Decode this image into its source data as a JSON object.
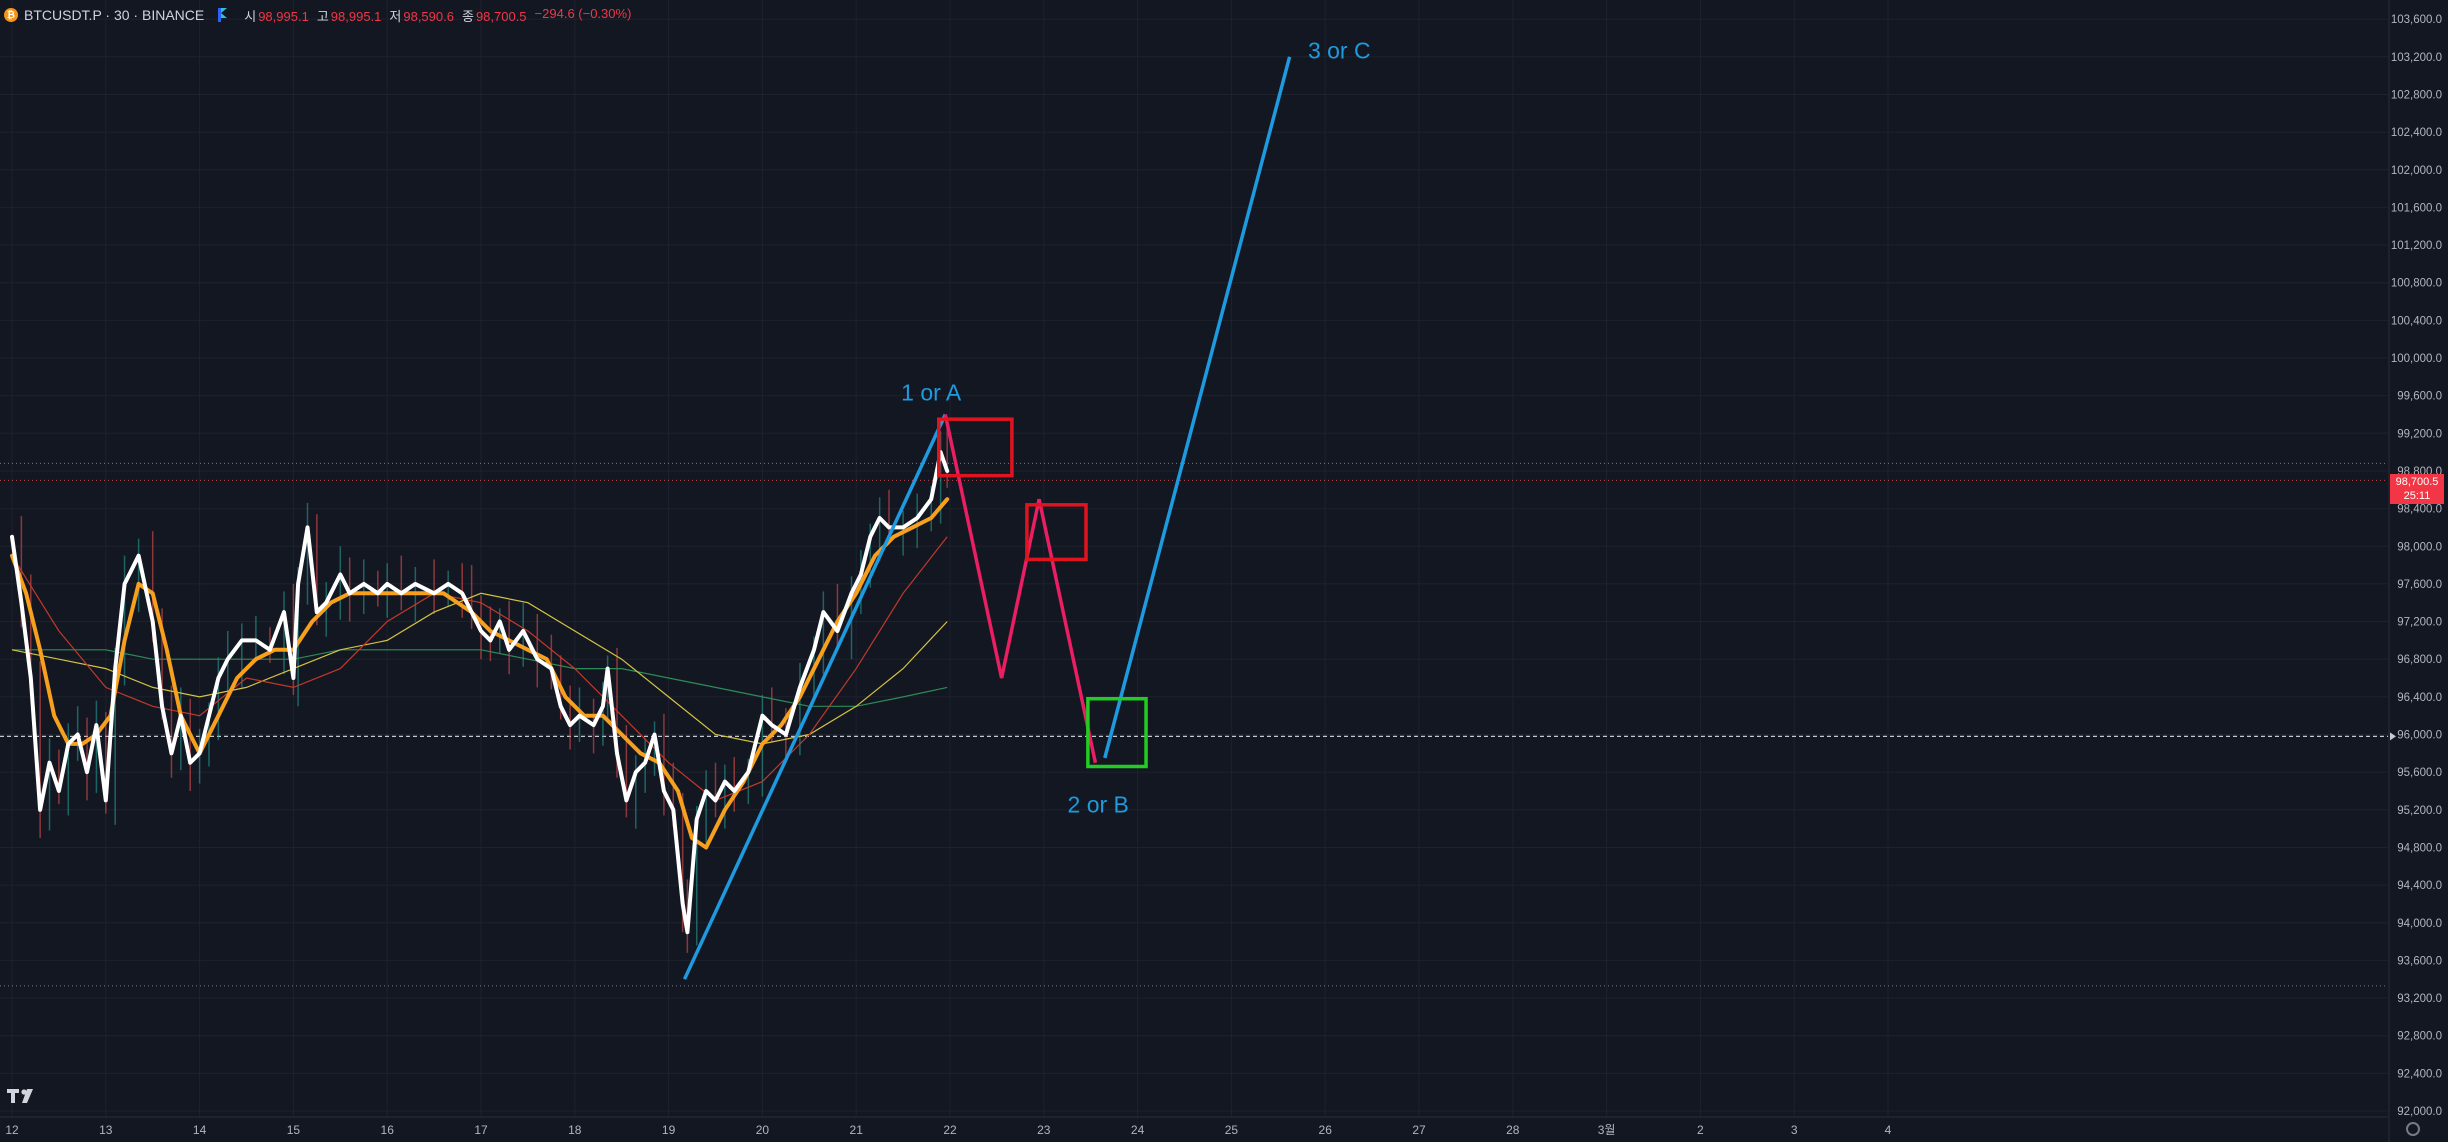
{
  "header": {
    "symbol": "BTCUSDT.P · 30 · BINANCE",
    "coin_glyph": "₿",
    "ohlc": [
      {
        "label": "시",
        "value": "98,995.1"
      },
      {
        "label": "고",
        "value": "98,995.1"
      },
      {
        "label": "저",
        "value": "98,590.6"
      },
      {
        "label": "종",
        "value": "98,700.5"
      },
      {
        "label": "",
        "value": "−294.6 (−0.30%)"
      }
    ]
  },
  "price_tag": {
    "price": "98,700.5",
    "timer": "25:11"
  },
  "icons": {
    "logo": "tradingview-logo-icon",
    "settings": "settings-gear-icon",
    "flag": "flag-icon",
    "coin": "bitcoin-icon"
  },
  "colors": {
    "background": "#131722",
    "grid": "#1e222d",
    "text": "#b2b5be",
    "price_line": "#ffffff",
    "ema_fast": "#f7a01e",
    "ma_red": "#c0392b",
    "ma_yellow": "#d4c341",
    "ma_green": "#2e8b57",
    "wave_blue": "#1e9be0",
    "wave_pink": "#e91e63",
    "box_red": "#e0141e",
    "box_green": "#22cc22",
    "candle_down": "#ef5350",
    "candle_up": "#26a69a"
  },
  "chart_data": {
    "type": "line",
    "y_axis": {
      "min": 92000,
      "max": 103600,
      "step": 400,
      "position": "right",
      "ticks": [
        "103,600.0",
        "103,200.0",
        "102,800.0",
        "102,400.0",
        "102,000.0",
        "101,600.0",
        "101,200.0",
        "100,800.0",
        "100,400.0",
        "100,000.0",
        "99,600.0",
        "99,200.0",
        "98,800.0",
        "98,400.0",
        "98,000.0",
        "97,600.0",
        "97,200.0",
        "96,800.0",
        "96,400.0",
        "96,000.0",
        "95,600.0",
        "95,200.0",
        "94,800.0",
        "94,400.0",
        "94,000.0",
        "93,600.0",
        "93,200.0",
        "92,800.0",
        "92,400.0",
        "92,000.0"
      ]
    },
    "x_axis": {
      "start_day": 12,
      "labels": [
        "12",
        "13",
        "14",
        "15",
        "16",
        "17",
        "18",
        "19",
        "20",
        "21",
        "22",
        "23",
        "24",
        "25",
        "26",
        "27",
        "28",
        "3월",
        "2",
        "3",
        "4"
      ]
    },
    "current_price": 98700.5,
    "horizontal_levels": [
      95980
    ],
    "price_series": {
      "name": "price",
      "points": [
        [
          12.0,
          98100
        ],
        [
          12.1,
          97400
        ],
        [
          12.2,
          96600
        ],
        [
          12.3,
          95200
        ],
        [
          12.4,
          95700
        ],
        [
          12.5,
          95400
        ],
        [
          12.6,
          95900
        ],
        [
          12.7,
          96000
        ],
        [
          12.8,
          95600
        ],
        [
          12.9,
          96100
        ],
        [
          13.0,
          95300
        ],
        [
          13.1,
          96700
        ],
        [
          13.2,
          97600
        ],
        [
          13.35,
          97900
        ],
        [
          13.5,
          97200
        ],
        [
          13.6,
          96300
        ],
        [
          13.7,
          95800
        ],
        [
          13.8,
          96200
        ],
        [
          13.9,
          95700
        ],
        [
          14.0,
          95800
        ],
        [
          14.1,
          96200
        ],
        [
          14.2,
          96600
        ],
        [
          14.3,
          96800
        ],
        [
          14.45,
          97000
        ],
        [
          14.6,
          97000
        ],
        [
          14.75,
          96900
        ],
        [
          14.9,
          97300
        ],
        [
          15.0,
          96600
        ],
        [
          15.05,
          97600
        ],
        [
          15.15,
          98200
        ],
        [
          15.25,
          97300
        ],
        [
          15.35,
          97400
        ],
        [
          15.5,
          97700
        ],
        [
          15.6,
          97500
        ],
        [
          15.75,
          97600
        ],
        [
          15.9,
          97500
        ],
        [
          16.0,
          97600
        ],
        [
          16.15,
          97500
        ],
        [
          16.3,
          97600
        ],
        [
          16.5,
          97500
        ],
        [
          16.65,
          97600
        ],
        [
          16.8,
          97500
        ],
        [
          16.9,
          97300
        ],
        [
          17.0,
          97100
        ],
        [
          17.1,
          97000
        ],
        [
          17.2,
          97200
        ],
        [
          17.3,
          96900
        ],
        [
          17.45,
          97100
        ],
        [
          17.6,
          96800
        ],
        [
          17.75,
          96700
        ],
        [
          17.85,
          96300
        ],
        [
          17.95,
          96100
        ],
        [
          18.05,
          96200
        ],
        [
          18.2,
          96100
        ],
        [
          18.3,
          96300
        ],
        [
          18.35,
          96700
        ],
        [
          18.45,
          95800
        ],
        [
          18.55,
          95300
        ],
        [
          18.65,
          95600
        ],
        [
          18.75,
          95700
        ],
        [
          18.85,
          96000
        ],
        [
          18.95,
          95400
        ],
        [
          19.05,
          95200
        ],
        [
          19.15,
          94200
        ],
        [
          19.2,
          93900
        ],
        [
          19.3,
          95100
        ],
        [
          19.4,
          95400
        ],
        [
          19.5,
          95300
        ],
        [
          19.6,
          95500
        ],
        [
          19.7,
          95400
        ],
        [
          19.85,
          95600
        ],
        [
          20.0,
          96200
        ],
        [
          20.1,
          96100
        ],
        [
          20.25,
          96000
        ],
        [
          20.4,
          96500
        ],
        [
          20.55,
          96900
        ],
        [
          20.65,
          97300
        ],
        [
          20.8,
          97100
        ],
        [
          20.95,
          97500
        ],
        [
          21.05,
          97700
        ],
        [
          21.15,
          98100
        ],
        [
          21.25,
          98300
        ],
        [
          21.35,
          98200
        ],
        [
          21.5,
          98200
        ],
        [
          21.65,
          98300
        ],
        [
          21.8,
          98500
        ],
        [
          21.9,
          99000
        ],
        [
          21.97,
          98800
        ]
      ]
    },
    "ema_fast": {
      "name": "ema_fast",
      "points": [
        [
          12.0,
          97900
        ],
        [
          12.15,
          97500
        ],
        [
          12.3,
          96900
        ],
        [
          12.45,
          96200
        ],
        [
          12.6,
          95900
        ],
        [
          12.75,
          95900
        ],
        [
          12.9,
          96000
        ],
        [
          13.05,
          96200
        ],
        [
          13.2,
          97000
        ],
        [
          13.35,
          97600
        ],
        [
          13.5,
          97500
        ],
        [
          13.65,
          96900
        ],
        [
          13.8,
          96200
        ],
        [
          14.0,
          95800
        ],
        [
          14.2,
          96200
        ],
        [
          14.4,
          96600
        ],
        [
          14.6,
          96800
        ],
        [
          14.8,
          96900
        ],
        [
          15.0,
          96900
        ],
        [
          15.2,
          97200
        ],
        [
          15.4,
          97400
        ],
        [
          15.6,
          97500
        ],
        [
          15.8,
          97500
        ],
        [
          16.0,
          97500
        ],
        [
          16.3,
          97500
        ],
        [
          16.6,
          97500
        ],
        [
          16.9,
          97300
        ],
        [
          17.1,
          97100
        ],
        [
          17.3,
          97000
        ],
        [
          17.5,
          96900
        ],
        [
          17.7,
          96800
        ],
        [
          17.9,
          96400
        ],
        [
          18.1,
          96200
        ],
        [
          18.3,
          96200
        ],
        [
          18.5,
          96000
        ],
        [
          18.7,
          95800
        ],
        [
          18.9,
          95700
        ],
        [
          19.1,
          95400
        ],
        [
          19.25,
          94900
        ],
        [
          19.4,
          94800
        ],
        [
          19.6,
          95200
        ],
        [
          19.8,
          95500
        ],
        [
          20.0,
          95900
        ],
        [
          20.2,
          96100
        ],
        [
          20.4,
          96400
        ],
        [
          20.6,
          96800
        ],
        [
          20.8,
          97200
        ],
        [
          21.0,
          97500
        ],
        [
          21.2,
          97900
        ],
        [
          21.4,
          98100
        ],
        [
          21.6,
          98200
        ],
        [
          21.8,
          98300
        ],
        [
          21.97,
          98500
        ]
      ]
    },
    "ma_red": {
      "name": "ma_red",
      "points": [
        [
          12.0,
          97900
        ],
        [
          12.5,
          97100
        ],
        [
          13.0,
          96500
        ],
        [
          13.5,
          96300
        ],
        [
          14.0,
          96200
        ],
        [
          14.5,
          96600
        ],
        [
          15.0,
          96500
        ],
        [
          15.5,
          96700
        ],
        [
          16.0,
          97200
        ],
        [
          16.5,
          97500
        ],
        [
          17.0,
          97400
        ],
        [
          17.5,
          97100
        ],
        [
          18.0,
          96700
        ],
        [
          18.5,
          96200
        ],
        [
          19.0,
          95700
        ],
        [
          19.5,
          95300
        ],
        [
          20.0,
          95500
        ],
        [
          20.5,
          96000
        ],
        [
          21.0,
          96700
        ],
        [
          21.5,
          97500
        ],
        [
          21.97,
          98100
        ]
      ]
    },
    "ma_yellow": {
      "name": "ma_yellow",
      "points": [
        [
          12.0,
          96900
        ],
        [
          12.5,
          96800
        ],
        [
          13.0,
          96700
        ],
        [
          13.5,
          96500
        ],
        [
          14.0,
          96400
        ],
        [
          14.5,
          96500
        ],
        [
          15.0,
          96700
        ],
        [
          15.5,
          96900
        ],
        [
          16.0,
          97000
        ],
        [
          16.5,
          97300
        ],
        [
          17.0,
          97500
        ],
        [
          17.5,
          97400
        ],
        [
          18.0,
          97100
        ],
        [
          18.5,
          96800
        ],
        [
          19.0,
          96400
        ],
        [
          19.5,
          96000
        ],
        [
          20.0,
          95900
        ],
        [
          20.5,
          96000
        ],
        [
          21.0,
          96300
        ],
        [
          21.5,
          96700
        ],
        [
          21.97,
          97200
        ]
      ]
    },
    "ma_green": {
      "name": "ma_green",
      "points": [
        [
          12.0,
          96900
        ],
        [
          12.5,
          96900
        ],
        [
          13.0,
          96900
        ],
        [
          13.5,
          96800
        ],
        [
          14.0,
          96800
        ],
        [
          14.5,
          96800
        ],
        [
          15.0,
          96800
        ],
        [
          15.5,
          96900
        ],
        [
          16.0,
          96900
        ],
        [
          16.5,
          96900
        ],
        [
          17.0,
          96900
        ],
        [
          17.5,
          96800
        ],
        [
          18.0,
          96700
        ],
        [
          18.5,
          96700
        ],
        [
          19.0,
          96600
        ],
        [
          19.5,
          96500
        ],
        [
          20.0,
          96400
        ],
        [
          20.5,
          96300
        ],
        [
          21.0,
          96300
        ],
        [
          21.5,
          96400
        ],
        [
          21.97,
          96500
        ]
      ]
    },
    "wave_blue_1": {
      "name": "wave_blue_1",
      "points": [
        [
          19.17,
          93400
        ],
        [
          21.95,
          99400
        ]
      ]
    },
    "wave_pink": {
      "name": "wave_pink",
      "points": [
        [
          21.95,
          99400
        ],
        [
          22.55,
          96600
        ],
        [
          22.95,
          98500
        ],
        [
          23.55,
          95700
        ]
      ]
    },
    "wave_blue_2": {
      "name": "wave_blue_2",
      "points": [
        [
          23.65,
          95750
        ],
        [
          25.62,
          103200
        ]
      ]
    },
    "boxes": [
      {
        "name": "red-box-1",
        "color": "red",
        "x0": 21.88,
        "x1": 22.66,
        "y0": 98750,
        "y1": 99350
      },
      {
        "name": "red-box-2",
        "color": "red",
        "x0": 22.82,
        "x1": 23.45,
        "y0": 97860,
        "y1": 98440
      },
      {
        "name": "green-box",
        "color": "green",
        "x0": 23.47,
        "x1": 24.09,
        "y0": 95660,
        "y1": 96380
      }
    ],
    "annotations": [
      {
        "text": "1 or A",
        "x": 21.8,
        "y": 99550
      },
      {
        "text": "2 or B",
        "x": 23.58,
        "y": 95170
      },
      {
        "text": "3 or C",
        "x": 26.15,
        "y": 103180
      }
    ],
    "candles_hint": "Grey/red/green 30-minute candle wicks behind the smoothed price line"
  }
}
